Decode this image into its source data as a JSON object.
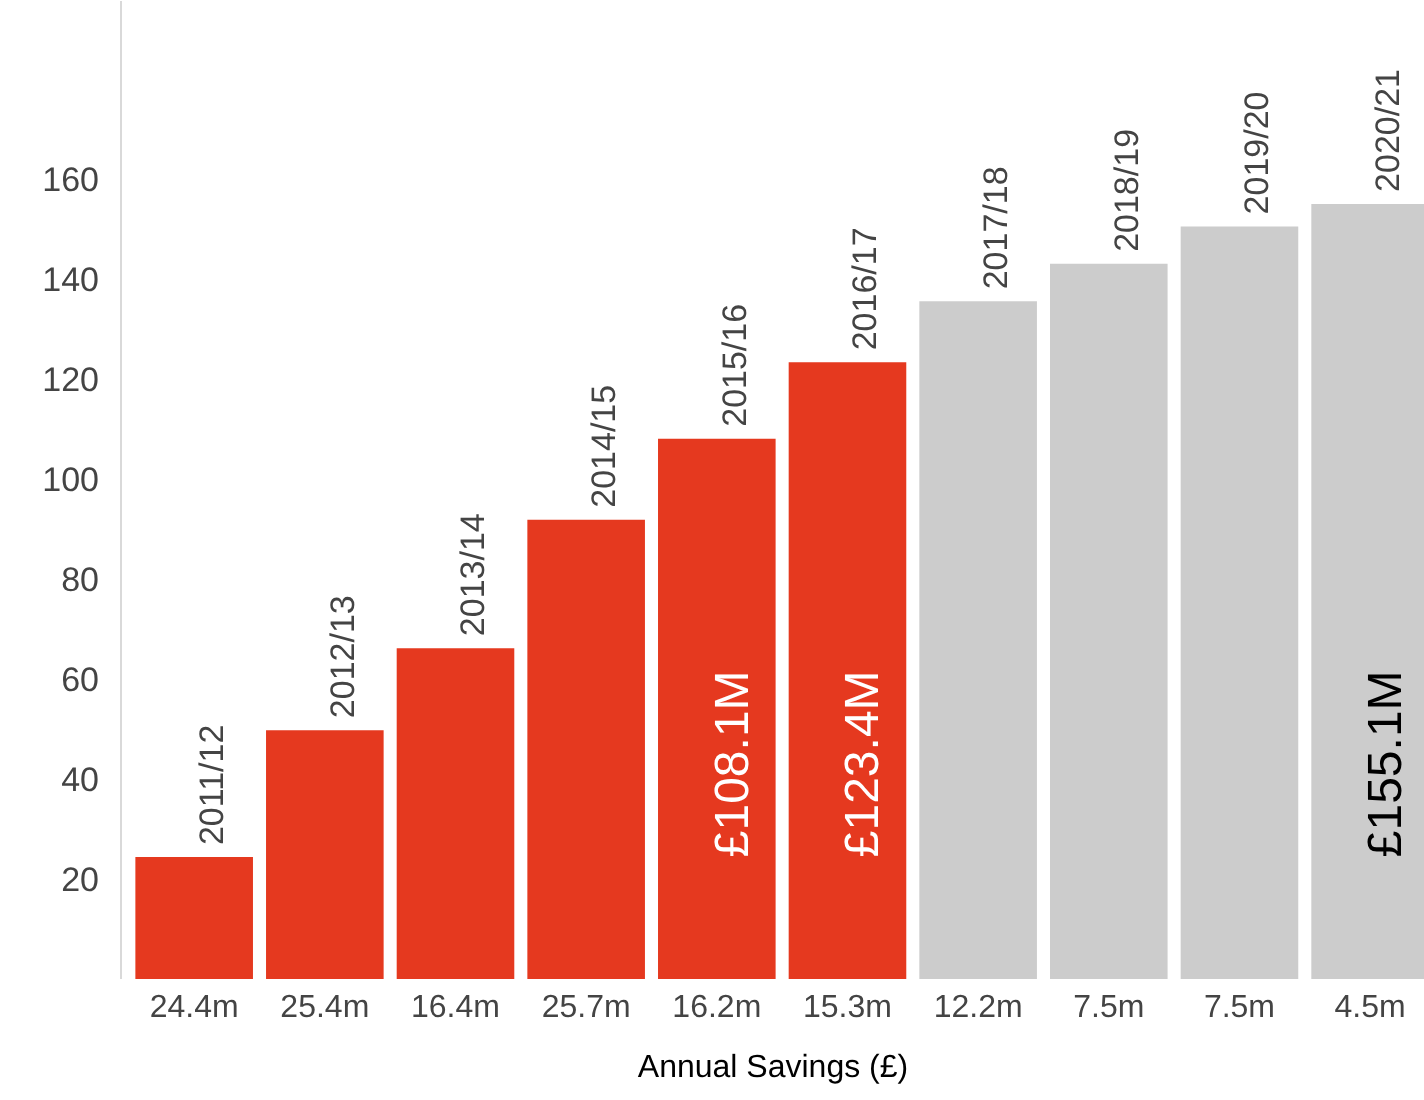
{
  "chart_data": {
    "type": "bar",
    "xlabel": "Annual Savings (£)",
    "categories": [
      "24.4m",
      "25.4m",
      "16.4m",
      "25.7m",
      "16.2m",
      "15.3m",
      "12.2m",
      "7.5m",
      "7.5m",
      "4.5m"
    ],
    "values": [
      24.4,
      49.8,
      66.2,
      91.9,
      108.1,
      123.4,
      135.6,
      143.1,
      150.6,
      155.1
    ],
    "colors": [
      "#e5391f",
      "#e5391f",
      "#e5391f",
      "#e5391f",
      "#e5391f",
      "#e5391f",
      "#cccccc",
      "#cccccc",
      "#cccccc",
      "#cccccc"
    ],
    "value_labels": [
      null,
      null,
      null,
      null,
      "£108.1M",
      "£123.4M",
      null,
      null,
      null,
      "£155.1M"
    ],
    "annotations": [
      "2011/12",
      "2012/13",
      "2013/14",
      "2014/15",
      "2015/16",
      "2016/17",
      "2017/18",
      "2018/19",
      "2019/20",
      "2020/21"
    ],
    "ylim": [
      0,
      195.7
    ],
    "yticks": [
      20,
      40,
      60,
      80,
      100,
      120,
      140,
      160
    ],
    "grid": false
  }
}
